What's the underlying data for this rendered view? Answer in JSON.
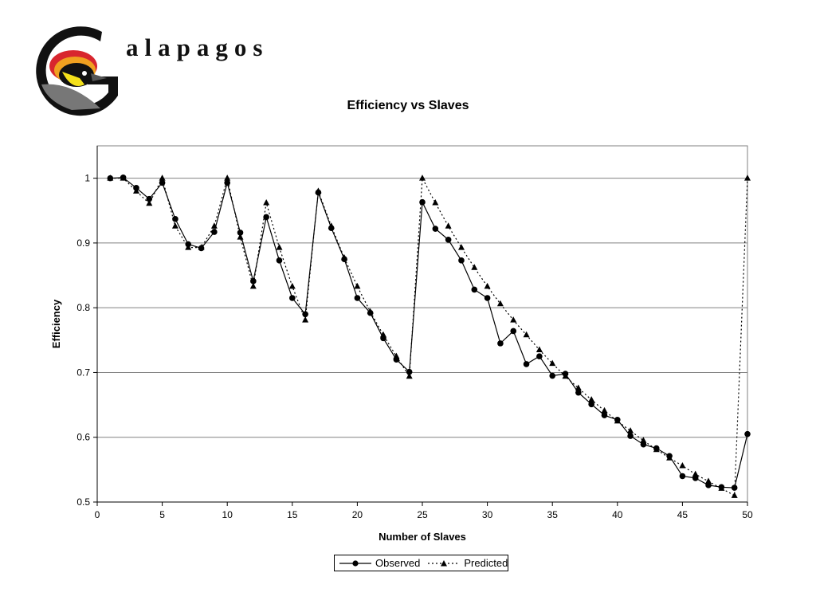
{
  "logo": {
    "word": "alapagos",
    "icon": "galapagos-finch-logo"
  },
  "chart_data": {
    "type": "line",
    "title": "Efficiency vs Slaves",
    "xlabel": "Number of Slaves",
    "ylabel": "Efficiency",
    "xlim": [
      0,
      50
    ],
    "ylim": [
      0.5,
      1.05
    ],
    "xticks": [
      0,
      5,
      10,
      15,
      20,
      25,
      30,
      35,
      40,
      45,
      50
    ],
    "yticks": [
      0.5,
      0.6,
      0.7,
      0.8,
      0.9,
      1
    ],
    "grid": "horizontal",
    "legend_position": "bottom",
    "x": [
      1,
      2,
      3,
      4,
      5,
      6,
      7,
      8,
      9,
      10,
      11,
      12,
      13,
      14,
      15,
      16,
      17,
      18,
      19,
      20,
      21,
      22,
      23,
      24,
      25,
      26,
      27,
      28,
      29,
      30,
      31,
      32,
      33,
      34,
      35,
      36,
      37,
      38,
      39,
      40,
      41,
      42,
      43,
      44,
      45,
      46,
      47,
      48,
      49,
      50
    ],
    "series": [
      {
        "name": "Observed",
        "style": "solid",
        "marker": "circle",
        "values": [
          1.0,
          1.001,
          0.985,
          0.968,
          0.993,
          0.937,
          0.898,
          0.892,
          0.917,
          0.993,
          0.916,
          0.841,
          0.94,
          0.873,
          0.815,
          0.79,
          0.978,
          0.923,
          0.875,
          0.815,
          0.792,
          0.753,
          0.72,
          0.701,
          0.963,
          0.922,
          0.905,
          0.873,
          0.828,
          0.815,
          0.745,
          0.764,
          0.713,
          0.725,
          0.695,
          0.698,
          0.669,
          0.651,
          0.634,
          0.627,
          0.602,
          0.589,
          0.583,
          0.571,
          0.54,
          0.537,
          0.526,
          0.523,
          0.522,
          0.605
        ]
      },
      {
        "name": "Predicted",
        "style": "dotted",
        "marker": "triangle",
        "values": [
          1.0,
          1.0,
          0.98,
          0.961,
          1.0,
          0.926,
          0.893,
          0.893,
          0.926,
          1.0,
          0.909,
          0.833,
          0.962,
          0.893,
          0.833,
          0.781,
          0.98,
          0.926,
          0.877,
          0.833,
          0.794,
          0.758,
          0.725,
          0.694,
          1.0,
          0.962,
          0.926,
          0.893,
          0.862,
          0.833,
          0.806,
          0.781,
          0.758,
          0.735,
          0.714,
          0.694,
          0.676,
          0.658,
          0.641,
          0.625,
          0.61,
          0.595,
          0.581,
          0.568,
          0.556,
          0.543,
          0.532,
          0.521,
          0.51,
          1.0
        ]
      }
    ]
  }
}
